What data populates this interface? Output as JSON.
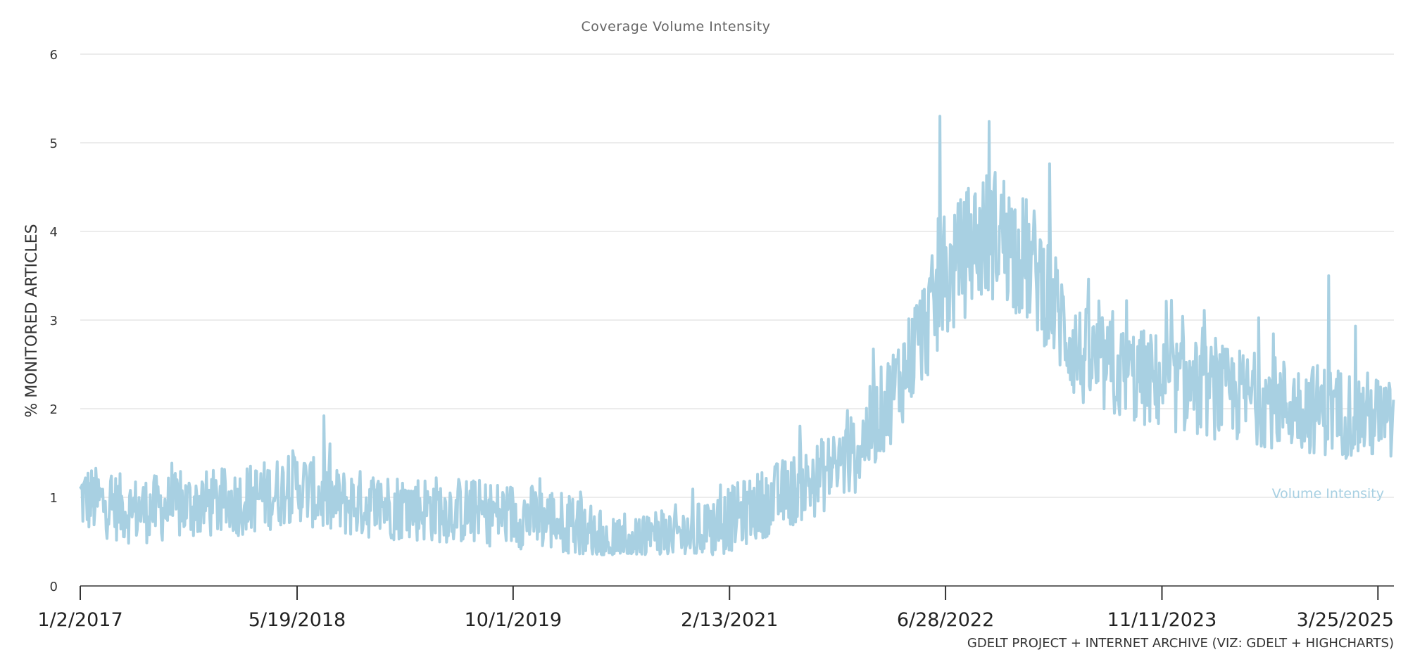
{
  "chart_data": {
    "type": "line",
    "title": "Coverage Volume Intensity",
    "ylabel": "% MONITORED ARTICLES",
    "xlabel": "",
    "ylim": [
      0,
      6
    ],
    "yticks": [
      "0",
      "1",
      "2",
      "3",
      "4",
      "5",
      "6"
    ],
    "xticks": [
      "1/2/2017",
      "5/19/2018",
      "10/1/2019",
      "2/13/2021",
      "6/28/2022",
      "11/11/2023",
      "3/25/2025"
    ],
    "x_range": [
      "1/2/2017",
      "5/1/2025"
    ],
    "grid": true,
    "legend": "none",
    "credit": "GDELT PROJECT + INTERNET ARCHIVE (VIZ: GDELT + HIGHCHARTS)",
    "series": [
      {
        "name": "Volume Intensity",
        "color": "#a8d0e2",
        "x": [
          "1/2/2017",
          "5/1/2017",
          "9/1/2017",
          "1/1/2018",
          "4/1/2018",
          "5/19/2018",
          "8/1/2018",
          "1/1/2019",
          "6/1/2019",
          "10/1/2019",
          "1/1/2020",
          "4/1/2020",
          "6/1/2020",
          "9/1/2020",
          "12/1/2020",
          "2/13/2021",
          "6/1/2021",
          "9/1/2021",
          "12/1/2021",
          "3/1/2022",
          "6/28/2022",
          "9/1/2022",
          "11/1/2022",
          "2/1/2023",
          "5/1/2023",
          "8/1/2023",
          "11/11/2023",
          "3/1/2024",
          "7/1/2024",
          "11/1/2024",
          "3/25/2025",
          "5/1/2025"
        ],
        "values": [
          1.0,
          0.85,
          0.9,
          0.95,
          1.05,
          1.15,
          0.95,
          0.9,
          0.85,
          0.8,
          0.75,
          0.6,
          0.5,
          0.55,
          0.6,
          0.75,
          1.0,
          1.2,
          1.5,
          2.2,
          3.4,
          3.9,
          4.0,
          3.5,
          2.6,
          2.4,
          2.3,
          2.2,
          2.1,
          2.0,
          1.9,
          1.8
        ],
        "peaks": [
          {
            "x": "7/20/2018",
            "value": 1.92
          },
          {
            "x": "6/15/2022",
            "value": 5.3
          },
          {
            "x": "12/15/2022",
            "value": 5.5
          },
          {
            "x": "12/1/2024",
            "value": 3.5
          }
        ]
      }
    ]
  }
}
